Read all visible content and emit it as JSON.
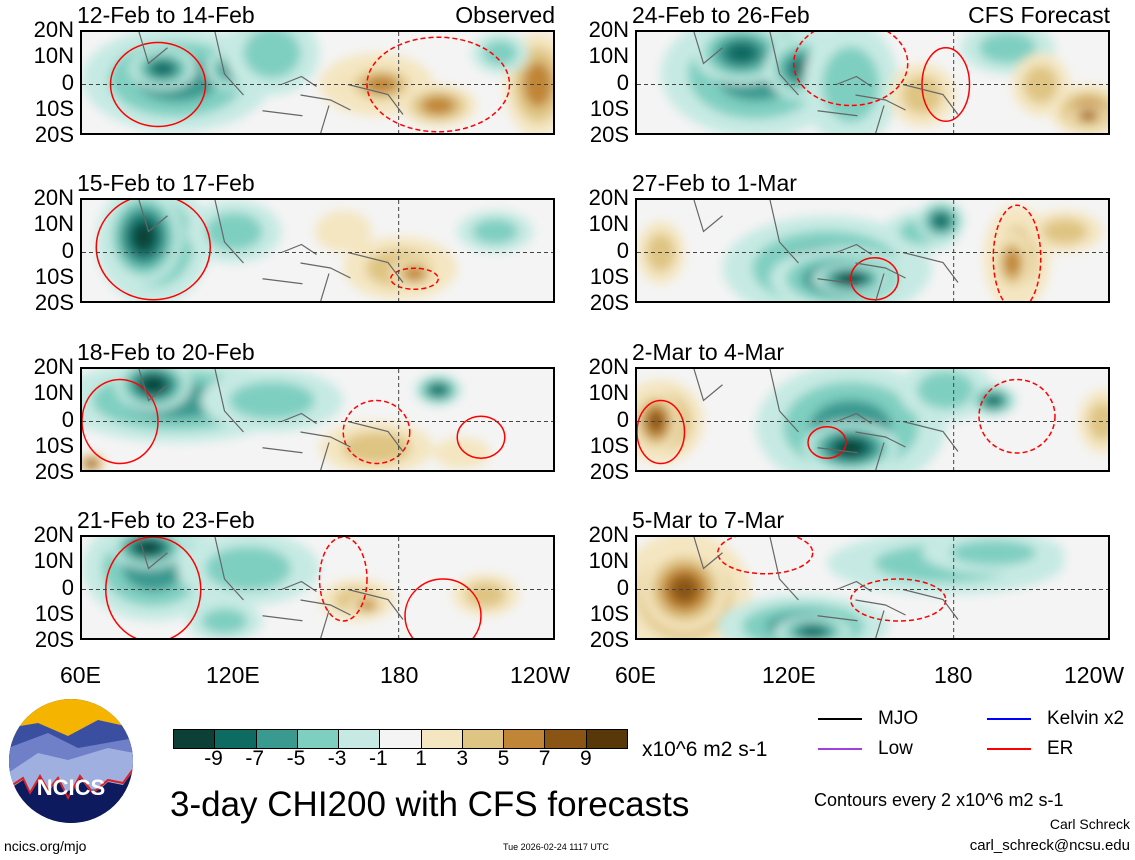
{
  "title": "3-day CHI200 with CFS forecasts",
  "url": "ncics.org/mjo",
  "timestamp": "Tue 2026-02-24 1117 UTC",
  "author": "Carl Schreck",
  "email": "carl_schreck@ncsu.edu",
  "logo_text": "NCICS",
  "contour_note": "Contours every 2 x10^6 m2 s-1",
  "colorbar": {
    "units": "x10^6 m2 s-1",
    "ticks": [
      "-9",
      "-7",
      "-5",
      "-3",
      "-1",
      "1",
      "3",
      "5",
      "7",
      "9"
    ],
    "colors": [
      "#0c3f36",
      "#0d6b62",
      "#3a9a90",
      "#7fcfc1",
      "#c6eae3",
      "#f4f4f4",
      "#f4e6c1",
      "#dfc583",
      "#c08536",
      "#8a5514",
      "#583709"
    ]
  },
  "legend": [
    {
      "label": "MJO",
      "color": "#000000"
    },
    {
      "label": "Kelvin x2",
      "color": "#0000ff"
    },
    {
      "label": "Low",
      "color": "#a040e0"
    },
    {
      "label": "ER",
      "color": "#ff0000"
    }
  ],
  "chart_data": {
    "type": "heatmap",
    "variable": "CHI200 anomaly",
    "y_ticks": [
      "20N",
      "10N",
      "0",
      "10S",
      "20S"
    ],
    "x_ticks": [
      "60E",
      "120E",
      "180",
      "120W"
    ],
    "xlim": [
      "60E",
      "120W"
    ],
    "ylim": [
      "20S",
      "20N"
    ],
    "panels": [
      {
        "title": "12-Feb to 14-Feb",
        "tag": "Observed"
      },
      {
        "title": "24-Feb to 26-Feb",
        "tag": "CFS Forecast"
      },
      {
        "title": "15-Feb to 17-Feb",
        "tag": ""
      },
      {
        "title": "27-Feb to 1-Mar",
        "tag": ""
      },
      {
        "title": "18-Feb to 20-Feb",
        "tag": ""
      },
      {
        "title": "2-Mar to 4-Mar",
        "tag": ""
      },
      {
        "title": "21-Feb to 23-Feb",
        "tag": ""
      },
      {
        "title": "5-Mar to 7-Mar",
        "tag": ""
      }
    ]
  }
}
